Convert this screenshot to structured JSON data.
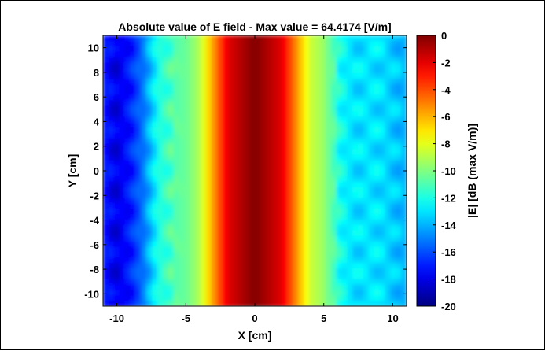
{
  "chart_data": {
    "type": "heatmap",
    "title": "Absolute value of E field - Max value = 64.4174 [V/m]",
    "xlabel": "X [cm]",
    "ylabel": "Y [cm]",
    "colorbar_label": "|E| [dB (max V/m)]",
    "xlim": [
      -11,
      11
    ],
    "ylim": [
      -11,
      11
    ],
    "clim": [
      -20,
      0
    ],
    "colormap": "jet",
    "x_ticks": [
      -10,
      -5,
      0,
      5,
      10
    ],
    "x_tick_labels": [
      "-10",
      "-5",
      "0",
      "5",
      "10"
    ],
    "y_ticks": [
      10,
      8,
      6,
      4,
      2,
      0,
      -2,
      -4,
      -6,
      -8,
      -10
    ],
    "y_tick_labels": [
      "10",
      "8",
      "6",
      "4",
      "2",
      "0",
      "-2",
      "-4",
      "-6",
      "-8",
      "-10"
    ],
    "colorbar_ticks": [
      0,
      -2,
      -4,
      -6,
      -8,
      -10,
      -12,
      -14,
      -16,
      -18,
      -20
    ],
    "colorbar_tick_labels": [
      "0",
      "-2",
      "-4",
      "-6",
      "-8",
      "-10",
      "-12",
      "-14",
      "-16",
      "-18",
      "-20"
    ],
    "x_profile_at_y0": [
      {
        "x": -11,
        "db": -17
      },
      {
        "x": -10,
        "db": -18
      },
      {
        "x": -9,
        "db": -17
      },
      {
        "x": -8,
        "db": -15
      },
      {
        "x": -7,
        "db": -12
      },
      {
        "x": -6,
        "db": -11
      },
      {
        "x": -5,
        "db": -10.5
      },
      {
        "x": -4,
        "db": -9
      },
      {
        "x": -2,
        "db": -2
      },
      {
        "x": 0,
        "db": 0
      },
      {
        "x": 2,
        "db": -2
      },
      {
        "x": 4,
        "db": -8.5
      },
      {
        "x": 5,
        "db": -9.5
      },
      {
        "x": 6,
        "db": -12
      },
      {
        "x": 7,
        "db": -13
      },
      {
        "x": 9,
        "db": -13
      },
      {
        "x": 11,
        "db": -14
      }
    ]
  }
}
